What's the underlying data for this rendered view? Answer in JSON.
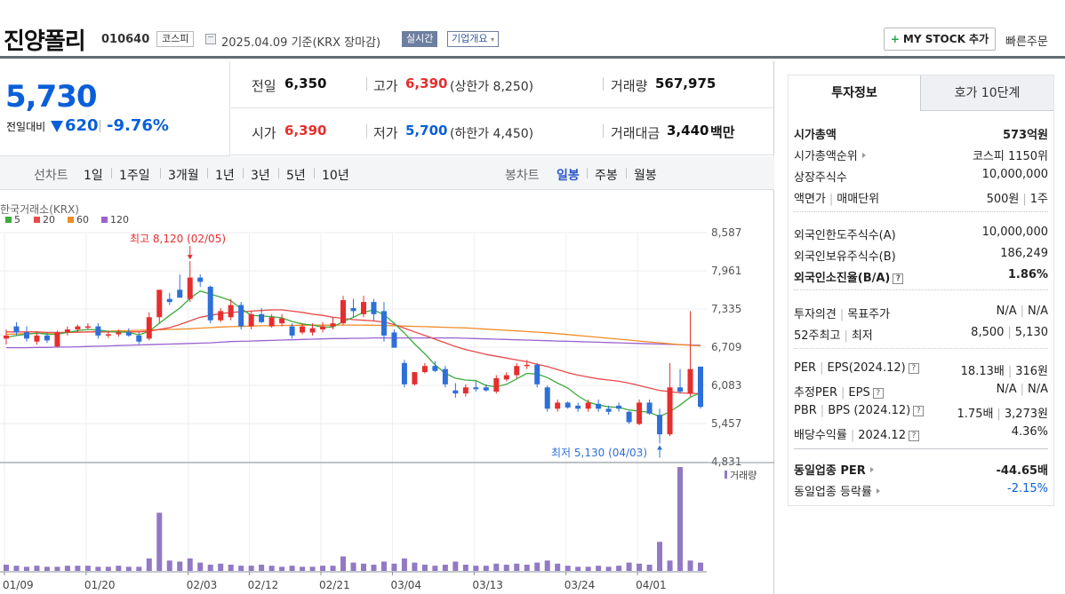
{
  "header": {
    "stock_name": "진양폴리",
    "stock_code": "010640",
    "market": "코스피",
    "base_date": "2025.04.09 기준(KRX 장마감)",
    "live_label": "실시간",
    "company_label": "기업개요",
    "my_stock_label": "MY STOCK 추가",
    "quick_order_label": "빠른주문"
  },
  "price": {
    "current": "5,730",
    "diff_label": "전일대비",
    "diff": "620",
    "rate": "-9.76%"
  },
  "info": {
    "prev_label": "전일",
    "prev": "6,350",
    "high_label": "고가",
    "high": "6,390",
    "upper_limit": "(상한가 8,250)",
    "volume_label": "거래량",
    "volume": "567,975",
    "open_label": "시가",
    "open": "6,390",
    "low_label": "저가",
    "low": "5,700",
    "lower_limit": "(하한가 4,450)",
    "amount_label": "거래대금",
    "amount": "3,440",
    "amount_unit": "백만"
  },
  "period": {
    "line_title": "선차트",
    "line_items": [
      "1일",
      "1주일",
      "3개월",
      "1년",
      "3년",
      "5년",
      "10년"
    ],
    "candle_title": "봉차트",
    "candle_items": [
      "일봉",
      "주봉",
      "월봉"
    ],
    "selected_candle": "일봉"
  },
  "chart_data": {
    "type": "candlestick",
    "source_label": "한국거래소(KRX)",
    "ma_legend": [
      {
        "name": "5",
        "color": "#3dab3d"
      },
      {
        "name": "20",
        "color": "#e84a4a"
      },
      {
        "name": "60",
        "color": "#f08c28"
      },
      {
        "name": "120",
        "color": "#9a62cf"
      }
    ],
    "y_ticks": [
      "8,587",
      "7,961",
      "7,335",
      "6,709",
      "6,083",
      "5,457",
      "4,831"
    ],
    "y_range": [
      4831,
      8587
    ],
    "x_ticks": [
      "01/09",
      "01/20",
      "02/03",
      "02/12",
      "02/21",
      "03/04",
      "03/13",
      "03/24",
      "04/01"
    ],
    "high_annotation": "최고 8,120 (02/05)",
    "low_annotation": "최저 5,130 (04/03)",
    "volume_label": "거래량",
    "up_color": "#e62e2e",
    "down_color": "#2e6fd8",
    "candles": [
      {
        "o": 6850,
        "h": 7000,
        "l": 6750,
        "c": 6900
      },
      {
        "o": 7050,
        "h": 7120,
        "l": 6900,
        "c": 6950
      },
      {
        "o": 6950,
        "h": 7050,
        "l": 6800,
        "c": 6850
      },
      {
        "o": 6800,
        "h": 6950,
        "l": 6750,
        "c": 6900
      },
      {
        "o": 6900,
        "h": 6950,
        "l": 6780,
        "c": 6820
      },
      {
        "o": 6720,
        "h": 6980,
        "l": 6700,
        "c": 6950
      },
      {
        "o": 6950,
        "h": 7050,
        "l": 6900,
        "c": 7000
      },
      {
        "o": 7000,
        "h": 7080,
        "l": 6950,
        "c": 7050
      },
      {
        "o": 7050,
        "h": 7100,
        "l": 7000,
        "c": 7050
      },
      {
        "o": 7050,
        "h": 7100,
        "l": 6850,
        "c": 6900
      },
      {
        "o": 6900,
        "h": 6980,
        "l": 6860,
        "c": 6920
      },
      {
        "o": 6920,
        "h": 7000,
        "l": 6880,
        "c": 6950
      },
      {
        "o": 6950,
        "h": 7020,
        "l": 6880,
        "c": 6900
      },
      {
        "o": 6900,
        "h": 6950,
        "l": 6760,
        "c": 6800
      },
      {
        "o": 6850,
        "h": 7280,
        "l": 6820,
        "c": 7200
      },
      {
        "o": 7200,
        "h": 7650,
        "l": 7100,
        "c": 7650
      },
      {
        "o": 7500,
        "h": 7600,
        "l": 7400,
        "c": 7450
      },
      {
        "o": 7650,
        "h": 7900,
        "l": 7550,
        "c": 7520
      },
      {
        "o": 7500,
        "h": 8120,
        "l": 7450,
        "c": 7850
      },
      {
        "o": 7850,
        "h": 7900,
        "l": 7700,
        "c": 7780
      },
      {
        "o": 7700,
        "h": 7720,
        "l": 7100,
        "c": 7150
      },
      {
        "o": 7150,
        "h": 7350,
        "l": 7120,
        "c": 7300
      },
      {
        "o": 7200,
        "h": 7500,
        "l": 7150,
        "c": 7400
      },
      {
        "o": 7400,
        "h": 7450,
        "l": 7000,
        "c": 7050
      },
      {
        "o": 7050,
        "h": 7300,
        "l": 7000,
        "c": 7250
      },
      {
        "o": 7250,
        "h": 7350,
        "l": 7100,
        "c": 7120
      },
      {
        "o": 7050,
        "h": 7250,
        "l": 7030,
        "c": 7200
      },
      {
        "o": 7100,
        "h": 7250,
        "l": 7050,
        "c": 7180
      },
      {
        "o": 7050,
        "h": 7100,
        "l": 6850,
        "c": 6900
      },
      {
        "o": 6950,
        "h": 7100,
        "l": 6920,
        "c": 7050
      },
      {
        "o": 6950,
        "h": 7100,
        "l": 6900,
        "c": 7020
      },
      {
        "o": 7000,
        "h": 7120,
        "l": 6950,
        "c": 7050
      },
      {
        "o": 7050,
        "h": 7200,
        "l": 7000,
        "c": 7100
      },
      {
        "o": 7100,
        "h": 7550,
        "l": 7080,
        "c": 7480
      },
      {
        "o": 7350,
        "h": 7500,
        "l": 7200,
        "c": 7300
      },
      {
        "o": 7250,
        "h": 7550,
        "l": 7200,
        "c": 7450
      },
      {
        "o": 7450,
        "h": 7500,
        "l": 7150,
        "c": 7250
      },
      {
        "o": 7300,
        "h": 7450,
        "l": 6800,
        "c": 6900
      },
      {
        "o": 6950,
        "h": 7000,
        "l": 6700,
        "c": 6700
      },
      {
        "o": 6450,
        "h": 6500,
        "l": 6050,
        "c": 6100
      },
      {
        "o": 6100,
        "h": 6300,
        "l": 6080,
        "c": 6300
      },
      {
        "o": 6300,
        "h": 6450,
        "l": 6280,
        "c": 6400
      },
      {
        "o": 6400,
        "h": 6480,
        "l": 6300,
        "c": 6320
      },
      {
        "o": 6350,
        "h": 6400,
        "l": 6050,
        "c": 6100
      },
      {
        "o": 6000,
        "h": 6120,
        "l": 5880,
        "c": 5950
      },
      {
        "o": 5950,
        "h": 6100,
        "l": 5900,
        "c": 6050
      },
      {
        "o": 6050,
        "h": 6150,
        "l": 5980,
        "c": 6020
      },
      {
        "o": 6050,
        "h": 6100,
        "l": 5980,
        "c": 6000
      },
      {
        "o": 5980,
        "h": 6250,
        "l": 5950,
        "c": 6200
      },
      {
        "o": 6180,
        "h": 6300,
        "l": 6150,
        "c": 6250
      },
      {
        "o": 6250,
        "h": 6450,
        "l": 6200,
        "c": 6400
      },
      {
        "o": 6400,
        "h": 6500,
        "l": 6350,
        "c": 6420
      },
      {
        "o": 6420,
        "h": 6450,
        "l": 6050,
        "c": 6100
      },
      {
        "o": 6050,
        "h": 6080,
        "l": 5650,
        "c": 5700
      },
      {
        "o": 5700,
        "h": 5850,
        "l": 5650,
        "c": 5800
      },
      {
        "o": 5800,
        "h": 5820,
        "l": 5700,
        "c": 5720
      },
      {
        "o": 5750,
        "h": 5800,
        "l": 5650,
        "c": 5700
      },
      {
        "o": 5700,
        "h": 5850,
        "l": 5650,
        "c": 5800
      },
      {
        "o": 5780,
        "h": 5850,
        "l": 5650,
        "c": 5700
      },
      {
        "o": 5700,
        "h": 5750,
        "l": 5600,
        "c": 5650
      },
      {
        "o": 5750,
        "h": 5800,
        "l": 5650,
        "c": 5700
      },
      {
        "o": 5650,
        "h": 5660,
        "l": 5450,
        "c": 5480
      },
      {
        "o": 5450,
        "h": 5850,
        "l": 5430,
        "c": 5800
      },
      {
        "o": 5800,
        "h": 5850,
        "l": 5600,
        "c": 5620
      },
      {
        "o": 5600,
        "h": 5700,
        "l": 5130,
        "c": 5280
      },
      {
        "o": 5280,
        "h": 6450,
        "l": 5250,
        "c": 6050
      },
      {
        "o": 6050,
        "h": 6350,
        "l": 5950,
        "c": 5980
      },
      {
        "o": 5950,
        "h": 7300,
        "l": 5900,
        "c": 6350
      },
      {
        "o": 6390,
        "h": 6390,
        "l": 5700,
        "c": 5730
      }
    ],
    "ma5": [
      6870,
      6900,
      6920,
      6940,
      6920,
      6920,
      6950,
      6980,
      7000,
      6990,
      6970,
      6960,
      6950,
      6910,
      6970,
      7100,
      7230,
      7350,
      7510,
      7630,
      7580,
      7530,
      7470,
      7340,
      7230,
      7220,
      7210,
      7190,
      7130,
      7090,
      7070,
      7040,
      7040,
      7130,
      7200,
      7280,
      7320,
      7240,
      7100,
      6940,
      6760,
      6600,
      6420,
      6280,
      6200,
      6170,
      6160,
      6080,
      6060,
      6100,
      6190,
      6280,
      6270,
      6210,
      6120,
      6040,
      5910,
      5810,
      5760,
      5730,
      5720,
      5680,
      5660,
      5640,
      5570,
      5650,
      5760,
      5890,
      5960
    ],
    "ma20": [
      6960,
      6960,
      6960,
      6960,
      6950,
      6950,
      6950,
      6955,
      6960,
      6960,
      6960,
      6960,
      6960,
      6960,
      6970,
      7000,
      7030,
      7080,
      7140,
      7200,
      7230,
      7260,
      7280,
      7290,
      7300,
      7310,
      7320,
      7320,
      7300,
      7280,
      7250,
      7230,
      7200,
      7180,
      7160,
      7150,
      7140,
      7120,
      7080,
      7020,
      6960,
      6900,
      6840,
      6780,
      6720,
      6670,
      6630,
      6590,
      6560,
      6530,
      6500,
      6470,
      6430,
      6390,
      6340,
      6290,
      6250,
      6220,
      6190,
      6170,
      6150,
      6120,
      6080,
      6040,
      6000,
      5980,
      5960,
      5950,
      5950
    ],
    "ma60": [
      6920,
      6925,
      6930,
      6935,
      6940,
      6945,
      6950,
      6955,
      6960,
      6965,
      6970,
      6975,
      6980,
      6985,
      6990,
      6995,
      7000,
      7005,
      7010,
      7020,
      7030,
      7040,
      7045,
      7050,
      7055,
      7060,
      7060,
      7065,
      7065,
      7070,
      7070,
      7070,
      7070,
      7072,
      7072,
      7070,
      7068,
      7065,
      7060,
      7055,
      7050,
      7045,
      7040,
      7035,
      7030,
      7025,
      7015,
      7005,
      6995,
      6985,
      6975,
      6965,
      6955,
      6945,
      6930,
      6915,
      6900,
      6885,
      6870,
      6855,
      6840,
      6825,
      6810,
      6795,
      6780,
      6765,
      6750,
      6740,
      6730
    ],
    "ma120": [
      6700,
      6700,
      6700,
      6705,
      6705,
      6710,
      6710,
      6715,
      6720,
      6725,
      6730,
      6735,
      6740,
      6745,
      6750,
      6755,
      6760,
      6765,
      6770,
      6775,
      6780,
      6790,
      6800,
      6805,
      6810,
      6815,
      6820,
      6825,
      6830,
      6835,
      6840,
      6845,
      6850,
      6850,
      6855,
      6855,
      6860,
      6860,
      6860,
      6860,
      6860,
      6860,
      6860,
      6860,
      6860,
      6855,
      6850,
      6845,
      6840,
      6835,
      6830,
      6825,
      6820,
      6815,
      6810,
      6805,
      6800,
      6795,
      6790,
      6785,
      6780,
      6775,
      6770,
      6765,
      6760,
      6755,
      6750,
      6745,
      6740
    ],
    "volumes": [
      6,
      5,
      4,
      5,
      4,
      4,
      5,
      5,
      5,
      4,
      4,
      5,
      4,
      4,
      12,
      56,
      10,
      9,
      12,
      8,
      6,
      7,
      6,
      5,
      5,
      6,
      5,
      4,
      5,
      4,
      4,
      5,
      5,
      14,
      8,
      7,
      6,
      9,
      7,
      12,
      8,
      6,
      5,
      6,
      9,
      6,
      5,
      5,
      7,
      6,
      7,
      6,
      8,
      10,
      7,
      5,
      4,
      4,
      5,
      4,
      5,
      8,
      7,
      6,
      28,
      10,
      100,
      10,
      8
    ]
  },
  "side": {
    "tab_invest": "투자정보",
    "tab_hoga": "호가 10단계",
    "market_cap_label": "시가총액",
    "market_cap": "573억원",
    "rank_label": "시가총액순위",
    "rank": "코스피 1150위",
    "shares_label": "상장주식수",
    "shares": "10,000,000",
    "face_label": "액면가",
    "unit_label": "매매단위",
    "face": "500원",
    "unit": "1주",
    "foreign_limit_label": "외국인한도주식수(A)",
    "foreign_limit": "10,000,000",
    "foreign_hold_label": "외국인보유주식수(B)",
    "foreign_hold": "186,249",
    "foreign_rate_label": "외국인소진율(B/A)",
    "foreign_rate": "1.86%",
    "opinion_label": "투자의견",
    "target_label": "목표주가",
    "opinion": "N/A",
    "target": "N/A",
    "w52_label": "52주최고",
    "w52_low_label": "최저",
    "w52_high": "8,500",
    "w52_low": "5,130",
    "per_label": "PER",
    "eps_label": "EPS(2024.12)",
    "per": "18.13배",
    "eps": "316원",
    "est_per_label": "추정PER",
    "est_eps_label": "EPS",
    "est_per": "N/A",
    "est_eps": "N/A",
    "pbr_label": "PBR",
    "bps_label": "BPS (2024.12)",
    "pbr": "1.75배",
    "bps": "3,273원",
    "div_label": "배당수익률",
    "div_year": "2024.12",
    "div": "4.36%",
    "sector_per_label": "동일업종 PER",
    "sector_per": "-44.65배",
    "sector_rate_label": "동일업종 등락률",
    "sector_rate": "-2.15%"
  }
}
